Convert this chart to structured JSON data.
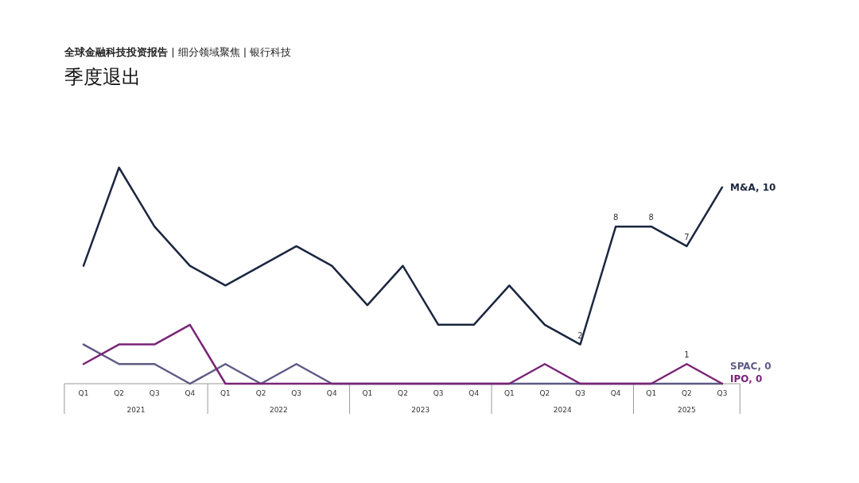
{
  "chart_data": {
    "type": "line",
    "subtitle": "**全球金融科技投资报告** | 细分领域聚焦 | 银行科技",
    "title": "季度退出",
    "categories": [
      "Q1",
      "Q2",
      "Q3",
      "Q4",
      "Q1",
      "Q2",
      "Q3",
      "Q4",
      "Q1",
      "Q2",
      "Q3",
      "Q4",
      "Q1",
      "Q2",
      "Q3",
      "Q4",
      "Q1",
      "Q2",
      "Q3"
    ],
    "annotations": [
      "2021",
      "2022",
      "2023",
      "2024",
      "2025"
    ],
    "series": [
      {
        "name": "M&A,",
        "color": "#1b2640",
        "values": [
          6,
          11,
          8,
          6,
          5,
          6,
          7,
          6,
          4,
          6,
          3,
          3,
          5,
          3,
          2,
          8,
          8,
          7,
          10
        ],
        "value_labels": [
          null,
          null,
          null,
          null,
          null,
          null,
          null,
          null,
          null,
          null,
          null,
          null,
          null,
          null,
          "2",
          "8",
          "8",
          "7",
          "10"
        ]
      },
      {
        "name": "SPAC,",
        "color": "#5e5a85",
        "values": [
          2,
          1,
          1,
          0,
          1,
          0,
          1,
          0,
          0,
          0,
          0,
          0,
          0,
          0,
          0,
          0,
          0,
          0,
          0
        ],
        "value_labels": [
          null,
          null,
          null,
          null,
          null,
          null,
          null,
          null,
          null,
          null,
          null,
          null,
          null,
          null,
          null,
          null,
          null,
          null,
          "0"
        ]
      },
      {
        "name": "IPO,",
        "color": "#7a2378",
        "values": [
          1,
          2,
          2,
          3,
          0,
          0,
          0,
          0,
          0,
          0,
          0,
          0,
          0,
          1,
          0,
          0,
          0,
          1,
          0
        ],
        "value_labels": [
          null,
          null,
          null,
          null,
          null,
          null,
          null,
          null,
          null,
          null,
          null,
          null,
          null,
          null,
          null,
          null,
          null,
          "1",
          "0"
        ]
      }
    ]
  }
}
